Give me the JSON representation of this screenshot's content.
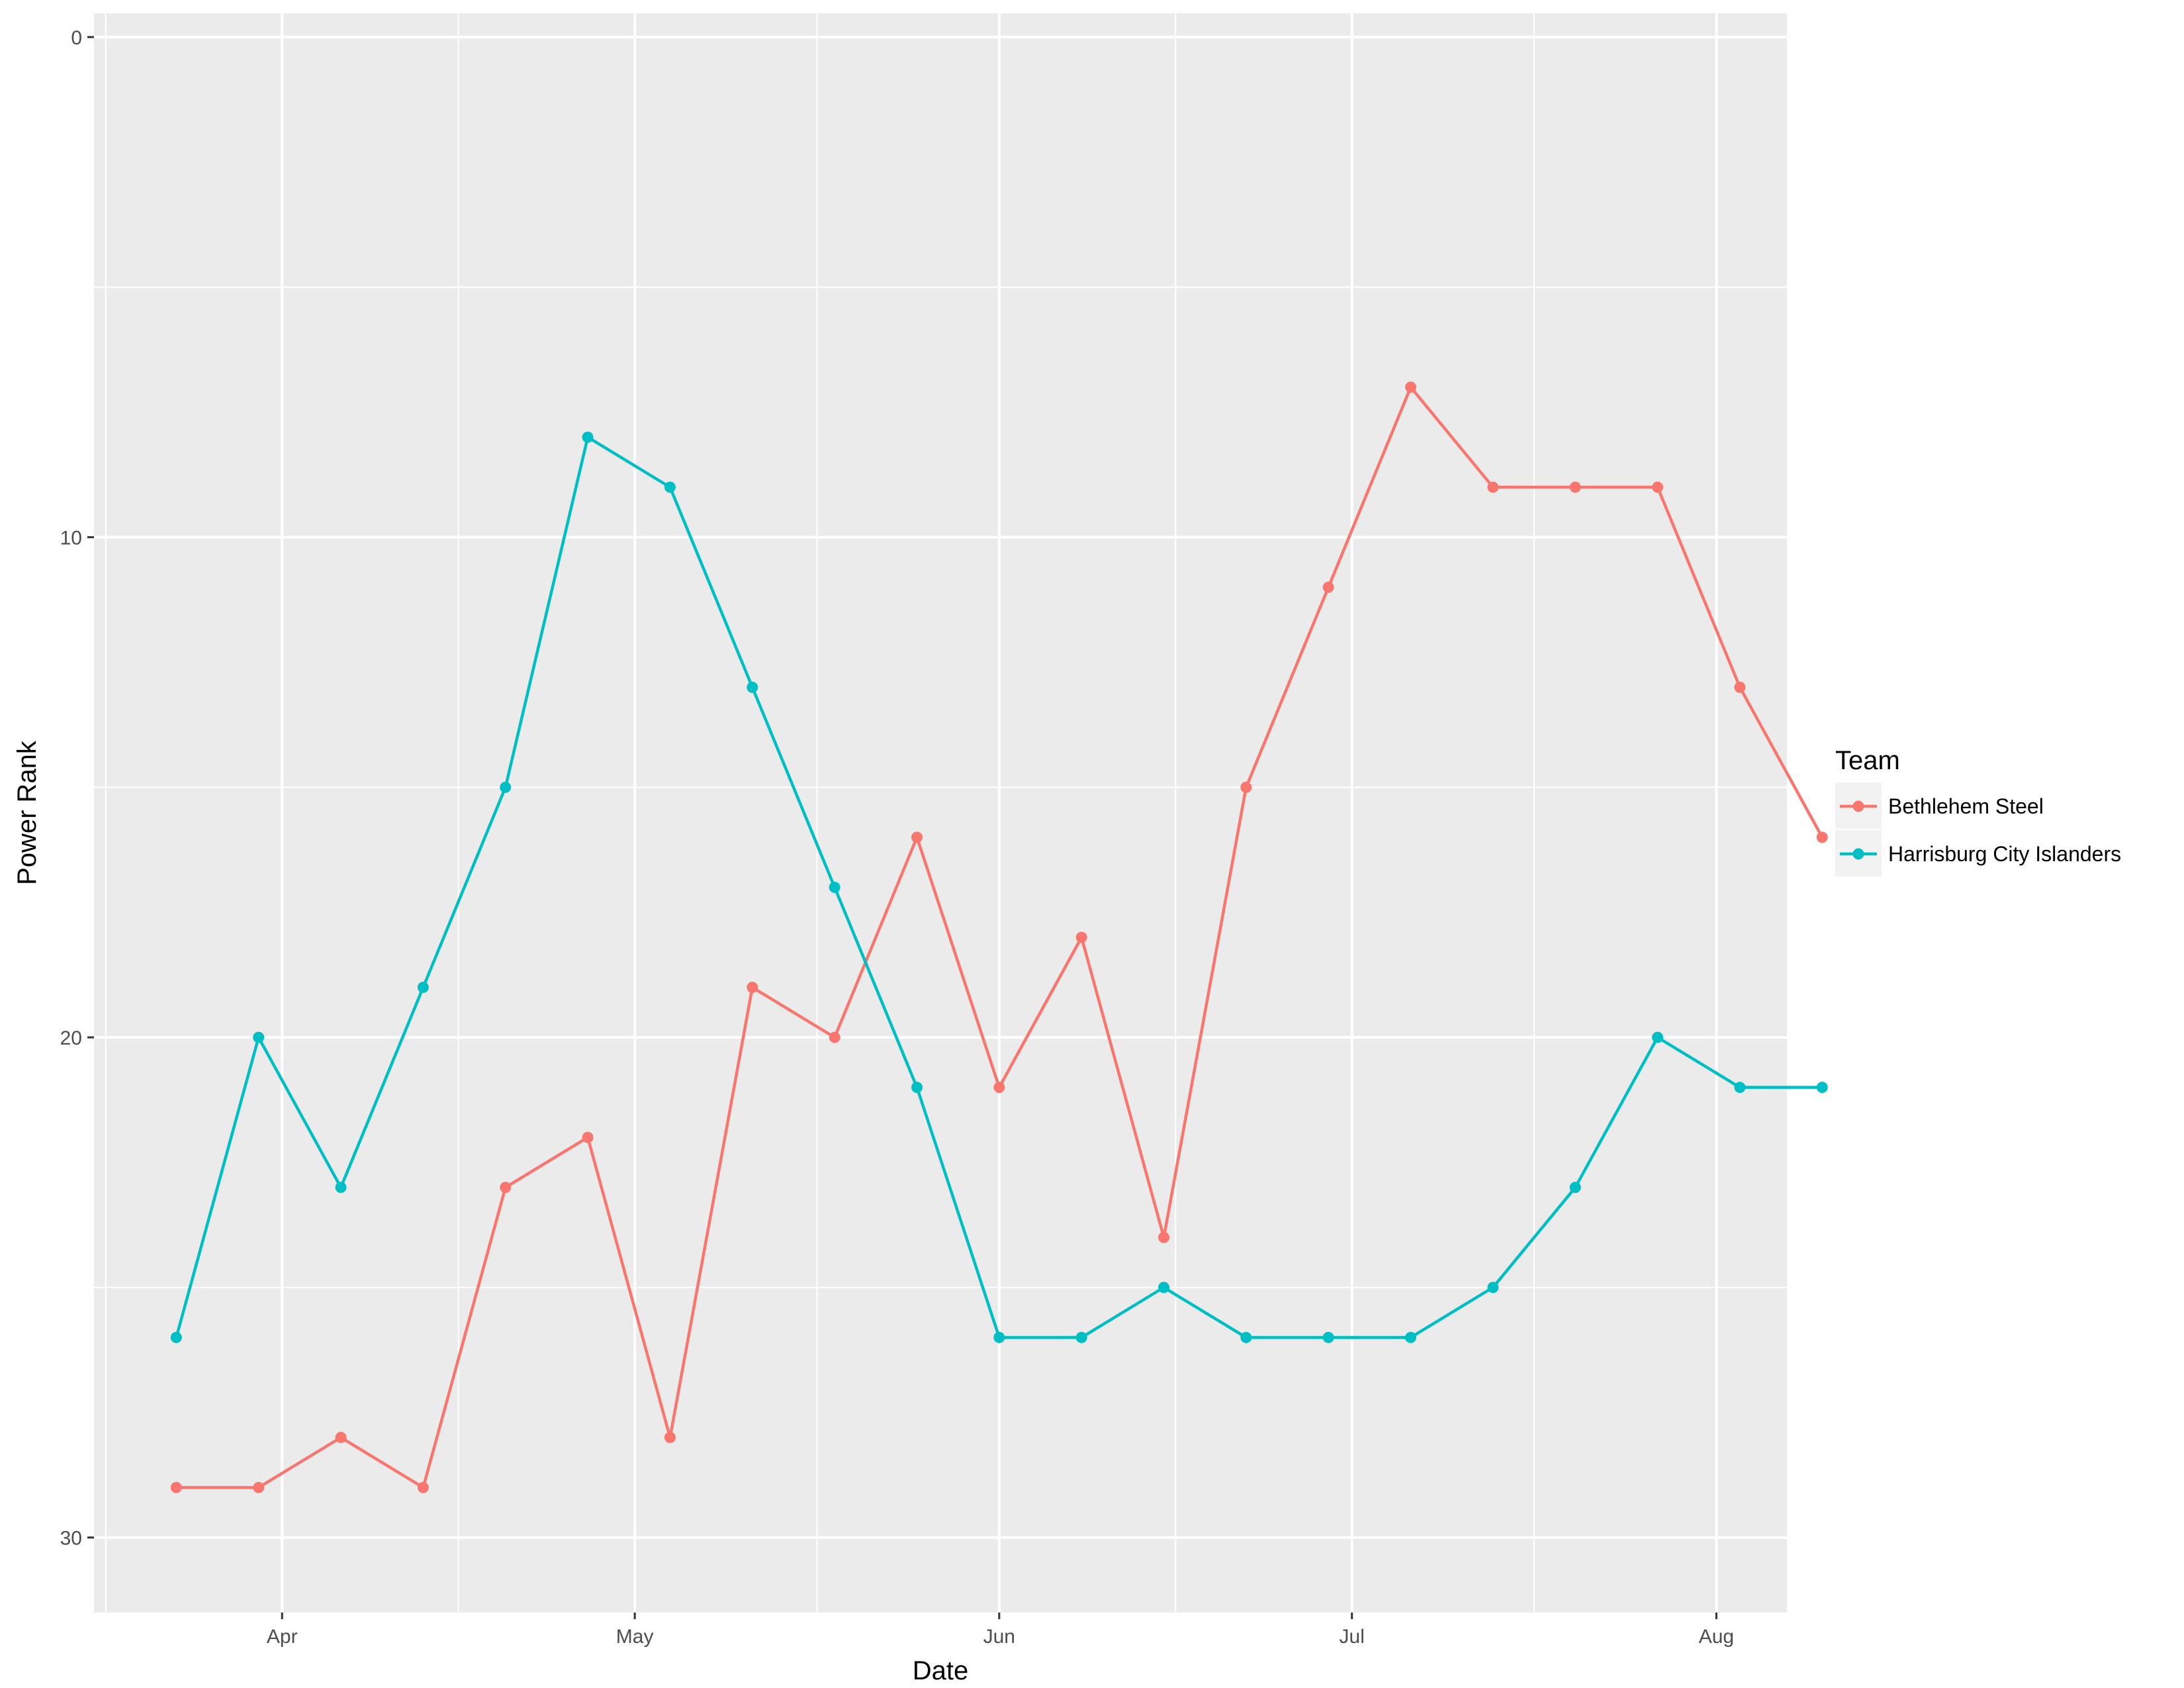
{
  "chart_data": {
    "type": "line",
    "title": "",
    "xlabel": "Date",
    "ylabel": "Power Rank",
    "y_reversed": true,
    "ylim": [
      0,
      31.5
    ],
    "y_ticks": [
      0,
      10,
      20,
      30
    ],
    "xlim": [
      "2017-03-16",
      "2017-08-07"
    ],
    "x_ticks": [
      {
        "date": "2017-04-01",
        "label": "Apr"
      },
      {
        "date": "2017-05-01",
        "label": "May"
      },
      {
        "date": "2017-06-01",
        "label": "Jun"
      },
      {
        "date": "2017-07-01",
        "label": "Jul"
      },
      {
        "date": "2017-08-01",
        "label": "Aug"
      }
    ],
    "grid": true,
    "panel_background": "#ebebeb",
    "legend": {
      "title": "Team",
      "placement": "right"
    },
    "x": [
      "2017-03-23",
      "2017-03-30",
      "2017-04-06",
      "2017-04-13",
      "2017-04-20",
      "2017-04-27",
      "2017-05-04",
      "2017-05-11",
      "2017-05-18",
      "2017-05-25",
      "2017-06-01",
      "2017-06-08",
      "2017-06-15",
      "2017-06-22",
      "2017-06-29",
      "2017-07-06",
      "2017-07-13",
      "2017-07-20",
      "2017-07-27",
      "2017-08-03",
      "2017-08-10"
    ],
    "series": [
      {
        "name": "Bethlehem Steel",
        "color": "#f8766d",
        "x": [
          "2017-03-23",
          "2017-03-30",
          "2017-04-06",
          "2017-04-13",
          "2017-04-20",
          "2017-04-27",
          "2017-05-04",
          "2017-05-11",
          "2017-05-18",
          "2017-05-25",
          "2017-06-01",
          "2017-06-08",
          "2017-06-15",
          "2017-06-22",
          "2017-06-29",
          "2017-07-06",
          "2017-07-13",
          "2017-07-20",
          "2017-07-27",
          "2017-08-03",
          "2017-08-10"
        ],
        "values": [
          29,
          29,
          28,
          29,
          23,
          22,
          28,
          19,
          20,
          16,
          21,
          18,
          24,
          15,
          11,
          7,
          9,
          9,
          9,
          13,
          16
        ]
      },
      {
        "name": "Harrisburg City Islanders",
        "color": "#00bfc4",
        "x": [
          "2017-03-23",
          "2017-03-30",
          "2017-04-06",
          "2017-04-13",
          "2017-04-20",
          "2017-04-27",
          "2017-05-04",
          "2017-05-11",
          "2017-05-18",
          "2017-05-25",
          "2017-06-01",
          "2017-06-08",
          "2017-06-15",
          "2017-06-22",
          "2017-06-29",
          "2017-07-06",
          "2017-07-13",
          "2017-07-20",
          "2017-07-27",
          "2017-08-03",
          "2017-08-10"
        ],
        "values": [
          26,
          20,
          23,
          19,
          15,
          8,
          9,
          13,
          17,
          21,
          26,
          26,
          25,
          26,
          26,
          26,
          25,
          23,
          20,
          21,
          21
        ]
      }
    ]
  }
}
